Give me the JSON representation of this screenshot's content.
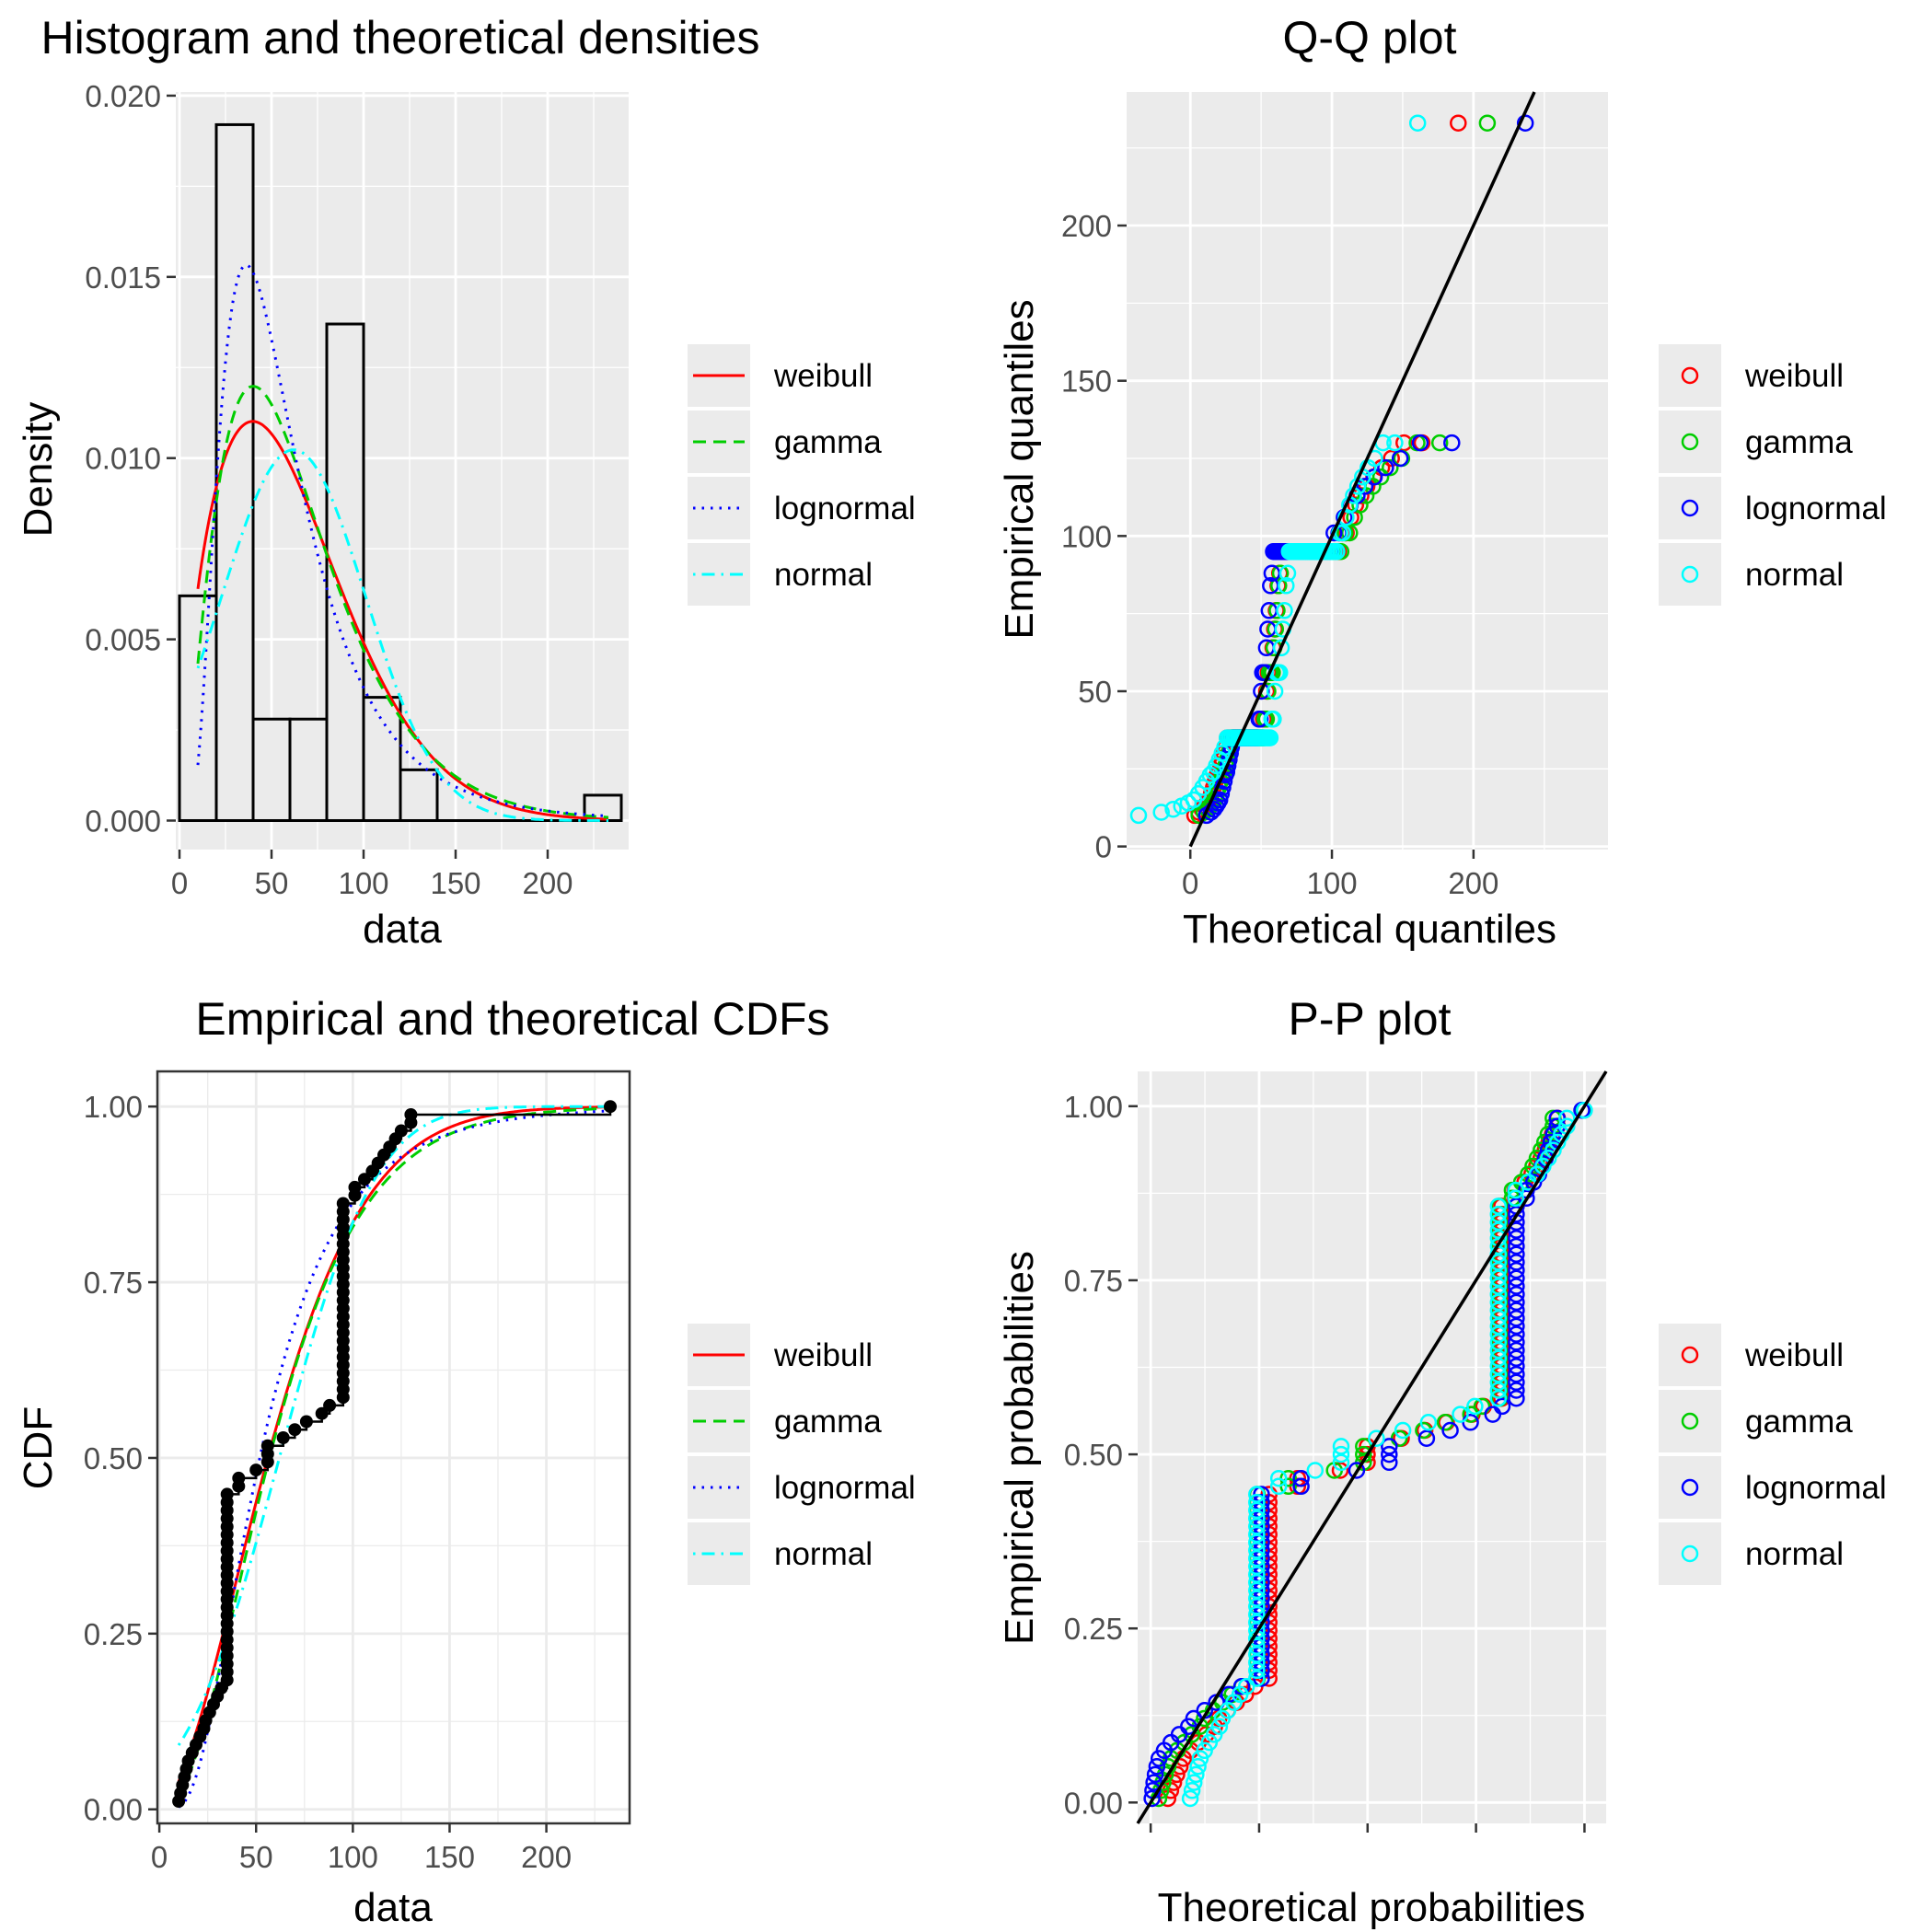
{
  "colors": {
    "weibull": "#ff0000",
    "gamma": "#00cd00",
    "lognormal": "#0000ff",
    "normal": "#00ffff",
    "panel_bg": "#ebebeb",
    "grid": "#ffffff",
    "bar_fill": "#ebebeb",
    "reference_line": "#000000"
  },
  "legend": {
    "entries": [
      {
        "key": "weibull",
        "label": "weibull",
        "linetype": "solid"
      },
      {
        "key": "gamma",
        "label": "gamma",
        "linetype": "dashed"
      },
      {
        "key": "lognormal",
        "label": "lognormal",
        "linetype": "dotted"
      },
      {
        "key": "normal",
        "label": "normal",
        "linetype": "dotdash"
      }
    ]
  },
  "chart_data": [
    {
      "id": "hist",
      "type": "bar",
      "title": "Histogram and theoretical densities",
      "xlabel": "data",
      "ylabel": "Density",
      "xlim": [
        -2,
        244
      ],
      "ylim": [
        -0.0008,
        0.0201
      ],
      "xticks": [
        0,
        50,
        100,
        150,
        200
      ],
      "xtick_labels": [
        "0",
        "50",
        "100",
        "150",
        "200"
      ],
      "yticks": [
        0,
        0.005,
        0.01,
        0.015,
        0.02
      ],
      "ytick_labels": [
        "0.000",
        "0.005",
        "0.010",
        "0.015",
        "0.020"
      ],
      "bins": [
        {
          "x0": 0,
          "x1": 20,
          "density": 0.0062
        },
        {
          "x0": 20,
          "x1": 40,
          "density": 0.0192
        },
        {
          "x0": 40,
          "x1": 60,
          "density": 0.0028
        },
        {
          "x0": 60,
          "x1": 80,
          "density": 0.0028
        },
        {
          "x0": 80,
          "x1": 100,
          "density": 0.0137
        },
        {
          "x0": 100,
          "x1": 120,
          "density": 0.0034
        },
        {
          "x0": 120,
          "x1": 140,
          "density": 0.0014
        },
        {
          "x0": 140,
          "x1": 160,
          "density": 0
        },
        {
          "x0": 160,
          "x1": 180,
          "density": 0
        },
        {
          "x0": 180,
          "x1": 200,
          "density": 0
        },
        {
          "x0": 200,
          "x1": 220,
          "density": 0
        },
        {
          "x0": 220,
          "x1": 240,
          "density": 0.0007
        }
      ],
      "grid": true,
      "legend": "right"
    },
    {
      "id": "qq",
      "type": "scatter",
      "title": "Q-Q plot",
      "xlabel": "Theoretical quantiles",
      "ylabel": "Empirical quantiles",
      "xlim": [
        -45,
        295
      ],
      "ylim": [
        -1,
        243
      ],
      "xticks": [
        0,
        100,
        200
      ],
      "xtick_labels": [
        "0",
        "100",
        "200"
      ],
      "yticks": [
        0,
        50,
        100,
        150,
        200
      ],
      "ytick_labels": [
        "0",
        "50",
        "100",
        "150",
        "200"
      ],
      "reference_line": "y = x",
      "grid": true,
      "legend": "right"
    },
    {
      "id": "cdf",
      "type": "line",
      "title": "Empirical and theoretical CDFs",
      "xlabel": "data",
      "ylabel": "CDF",
      "xlim": [
        -1,
        243
      ],
      "ylim": [
        -0.02,
        1.05
      ],
      "xticks": [
        0,
        50,
        100,
        150,
        200
      ],
      "xtick_labels": [
        "0",
        "50",
        "100",
        "150",
        "200"
      ],
      "yticks": [
        0,
        0.25,
        0.5,
        0.75,
        1
      ],
      "ytick_labels": [
        "0.00",
        "0.25",
        "0.50",
        "0.75",
        "1.00"
      ],
      "grid": true,
      "legend": "right"
    },
    {
      "id": "pp",
      "type": "scatter",
      "title": "P-P plot",
      "xlabel": "Theoretical probabilities",
      "ylabel": "Empirical probabilities",
      "xlim": [
        -0.03,
        1.05
      ],
      "ylim": [
        -0.03,
        1.05
      ],
      "xticks": [
        0,
        0.25,
        0.5,
        0.75,
        1
      ],
      "yticks": [
        0,
        0.25,
        0.5,
        0.75,
        1
      ],
      "ytick_labels": [
        "0.00",
        "0.25",
        "0.50",
        "0.75",
        "1.00"
      ],
      "reference_line": "y = x",
      "grid": true,
      "legend": "right"
    }
  ]
}
